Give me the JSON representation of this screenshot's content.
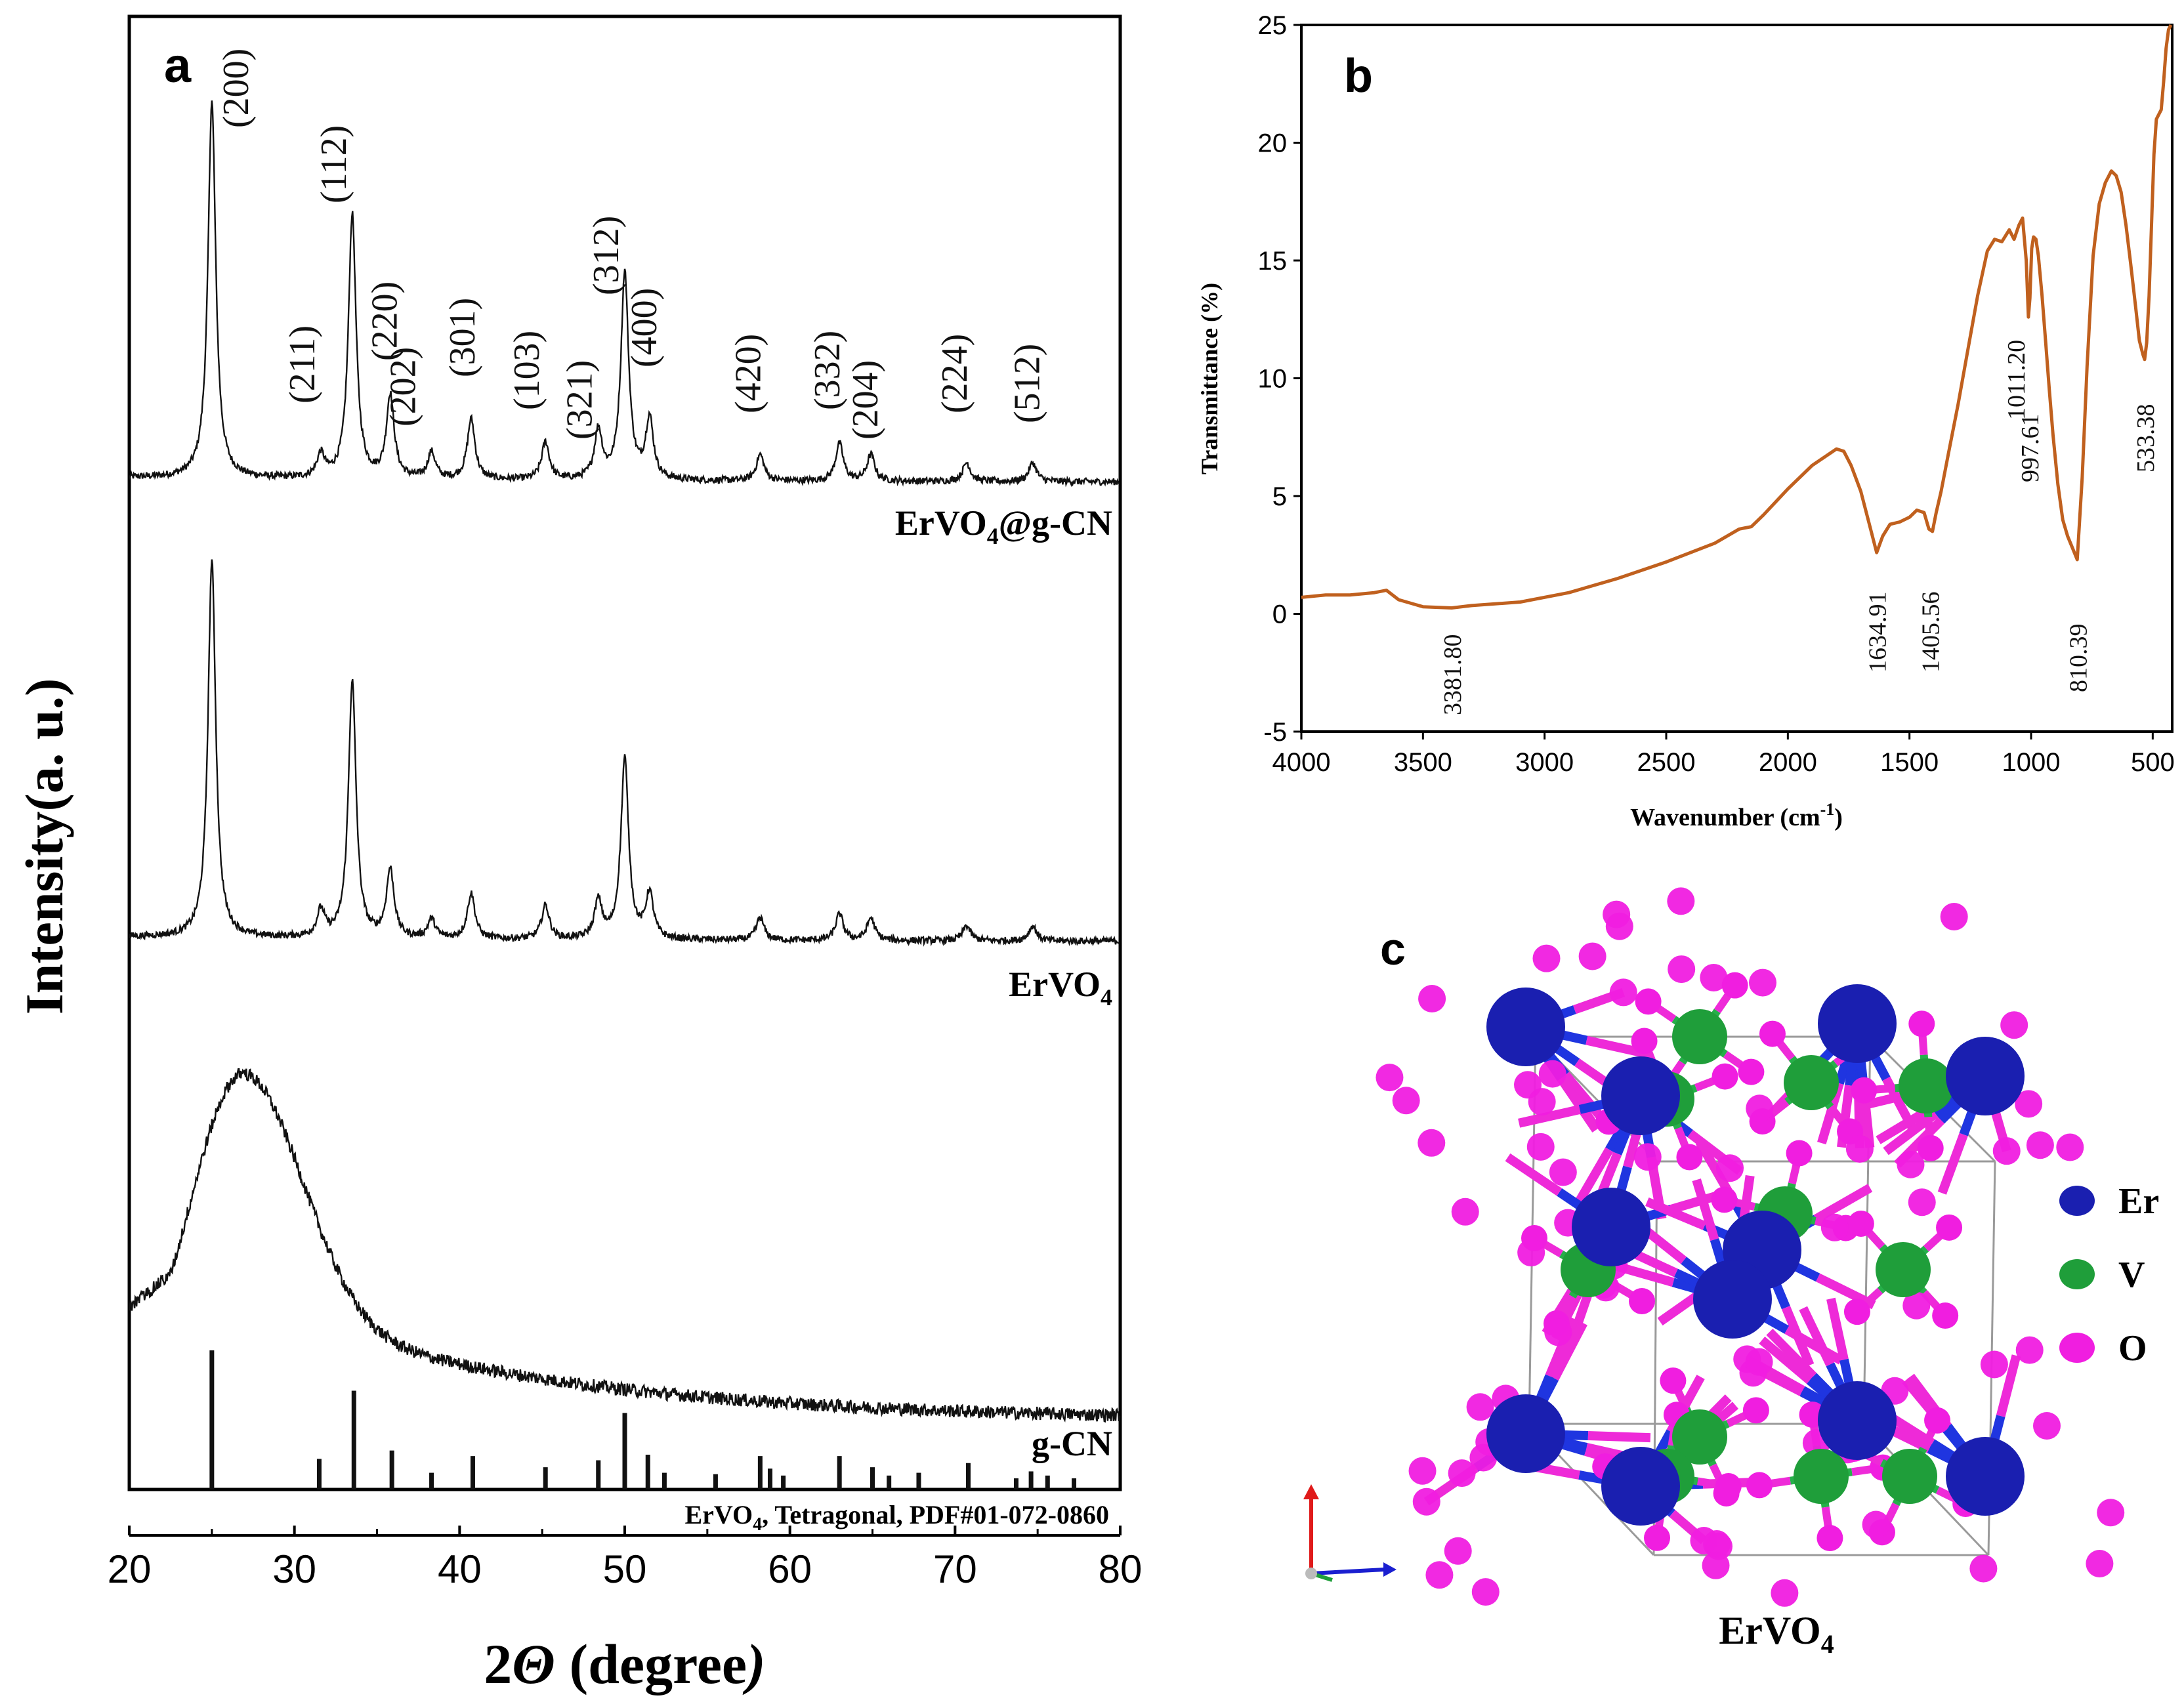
{
  "colors": {
    "ftir_line": "#c0601e",
    "er_atom": "#1a1fb0",
    "v_atom": "#1f9e3a",
    "o_atom": "#f01ee0",
    "er_bond": "#1f35e0",
    "o_bond": "#ee2ad8",
    "v_bond": "#26b04a"
  },
  "panels": {
    "a": {
      "label": "a"
    },
    "b": {
      "label": "b"
    },
    "c": {
      "label": "c",
      "caption_main": "ErVO",
      "caption_sub": "4",
      "legend": [
        {
          "label": "Er",
          "color": "#1a1fb0"
        },
        {
          "label": "V",
          "color": "#1f9e3a"
        },
        {
          "label": "O",
          "color": "#f01ee0"
        }
      ]
    }
  },
  "chart_data": [
    {
      "type": "line",
      "panel": "a",
      "title": "",
      "xlabel_main": "2",
      "xlabel_theta": "Θ",
      "xlabel_rest": " (degree",
      "xlabel_close": ")",
      "ylabel": "Intensity(a. u.)",
      "xlim": [
        20,
        80
      ],
      "xticks": [
        "20",
        "30",
        "40",
        "50",
        "60",
        "70",
        "80"
      ],
      "y_axis_scale": "arbitrary, stacked",
      "series": [
        {
          "name": "ErVO4@g-CN",
          "label_main": "ErVO",
          "label_sub": "4",
          "label_rest": "@g-CN",
          "peaks": [
            {
              "x": 25.0,
              "h": 1.0
            },
            {
              "x": 31.6,
              "h": 0.06
            },
            {
              "x": 33.5,
              "h": 0.7
            },
            {
              "x": 35.8,
              "h": 0.22
            },
            {
              "x": 38.3,
              "h": 0.07
            },
            {
              "x": 40.7,
              "h": 0.16
            },
            {
              "x": 45.2,
              "h": 0.1
            },
            {
              "x": 48.4,
              "h": 0.13
            },
            {
              "x": 50.0,
              "h": 0.55
            },
            {
              "x": 51.5,
              "h": 0.16
            },
            {
              "x": 58.2,
              "h": 0.07
            },
            {
              "x": 63.0,
              "h": 0.1
            },
            {
              "x": 64.9,
              "h": 0.07
            },
            {
              "x": 70.7,
              "h": 0.05
            },
            {
              "x": 74.7,
              "h": 0.05
            }
          ]
        },
        {
          "name": "ErVO4",
          "label_main": "ErVO",
          "label_sub": "4",
          "label_rest": "",
          "peaks": [
            {
              "x": 25.0,
              "h": 1.0
            },
            {
              "x": 31.6,
              "h": 0.07
            },
            {
              "x": 33.5,
              "h": 0.68
            },
            {
              "x": 35.8,
              "h": 0.18
            },
            {
              "x": 38.3,
              "h": 0.05
            },
            {
              "x": 40.7,
              "h": 0.12
            },
            {
              "x": 45.2,
              "h": 0.09
            },
            {
              "x": 48.4,
              "h": 0.1
            },
            {
              "x": 50.0,
              "h": 0.48
            },
            {
              "x": 51.5,
              "h": 0.12
            },
            {
              "x": 58.2,
              "h": 0.06
            },
            {
              "x": 63.0,
              "h": 0.07
            },
            {
              "x": 64.9,
              "h": 0.06
            },
            {
              "x": 70.7,
              "h": 0.04
            },
            {
              "x": 74.7,
              "h": 0.04
            }
          ]
        },
        {
          "name": "g-CN",
          "label_main": "g-CN",
          "label_sub": "",
          "label_rest": "",
          "broad_peak": {
            "center": 27.2,
            "height": 0.6
          }
        }
      ],
      "reference": {
        "label_main": "ErVO",
        "label_sub": "4",
        "label_rest": ", Tetragonal, PDF#01-072-0860",
        "lines": [
          {
            "x": 25.0,
            "h": 1.0
          },
          {
            "x": 31.5,
            "h": 0.22
          },
          {
            "x": 33.6,
            "h": 0.71
          },
          {
            "x": 35.9,
            "h": 0.28
          },
          {
            "x": 38.3,
            "h": 0.12
          },
          {
            "x": 40.8,
            "h": 0.24
          },
          {
            "x": 45.2,
            "h": 0.16
          },
          {
            "x": 48.4,
            "h": 0.21
          },
          {
            "x": 50.0,
            "h": 0.55
          },
          {
            "x": 51.4,
            "h": 0.25
          },
          {
            "x": 52.4,
            "h": 0.12
          },
          {
            "x": 55.5,
            "h": 0.11
          },
          {
            "x": 58.2,
            "h": 0.24
          },
          {
            "x": 58.8,
            "h": 0.15
          },
          {
            "x": 59.6,
            "h": 0.1
          },
          {
            "x": 63.0,
            "h": 0.24
          },
          {
            "x": 65.0,
            "h": 0.16
          },
          {
            "x": 66.0,
            "h": 0.1
          },
          {
            "x": 67.8,
            "h": 0.12
          },
          {
            "x": 70.8,
            "h": 0.19
          },
          {
            "x": 73.7,
            "h": 0.08
          },
          {
            "x": 74.6,
            "h": 0.13
          },
          {
            "x": 75.6,
            "h": 0.1
          },
          {
            "x": 77.2,
            "h": 0.08
          }
        ]
      },
      "annotations": [
        {
          "text": "(200)",
          "x": 25.0
        },
        {
          "text": "(211)",
          "x": 31.6
        },
        {
          "text": "(112)",
          "x": 33.5
        },
        {
          "text": "(220)",
          "x": 35.8
        },
        {
          "text": "(202)",
          "x": 38.3
        },
        {
          "text": "(301)",
          "x": 40.7
        },
        {
          "text": "(103)",
          "x": 45.2
        },
        {
          "text": "(321)",
          "x": 48.4
        },
        {
          "text": "(312)",
          "x": 50.0
        },
        {
          "text": "(400)",
          "x": 51.5
        },
        {
          "text": "(420)",
          "x": 58.2
        },
        {
          "text": "(332)",
          "x": 63.0
        },
        {
          "text": "(204)",
          "x": 64.9
        },
        {
          "text": "(224)",
          "x": 70.7
        },
        {
          "text": "(512)",
          "x": 74.7
        }
      ]
    },
    {
      "type": "line",
      "panel": "b",
      "title": "",
      "xlabel_main": "Wavenumber (cm",
      "xlabel_sup": "-1",
      "xlabel_close": ")",
      "ylabel": "Transmittance (%)",
      "xlim": [
        4000,
        420
      ],
      "ylim": [
        -5,
        25
      ],
      "xticks": [
        4000,
        3500,
        3000,
        2500,
        2000,
        1500,
        1000,
        500
      ],
      "yticks": [
        -5,
        0,
        5,
        10,
        15,
        20,
        25
      ],
      "series": [
        {
          "name": "ErVO4@g-CN FTIR",
          "x": [
            4000,
            3900,
            3800,
            3700,
            3650,
            3600,
            3500,
            3381.8,
            3300,
            3100,
            2900,
            2700,
            2500,
            2300,
            2200,
            2150,
            2100,
            2000,
            1900,
            1800,
            1770,
            1740,
            1700,
            1660,
            1634.91,
            1610,
            1580,
            1540,
            1500,
            1470,
            1440,
            1420,
            1405.56,
            1390,
            1370,
            1340,
            1300,
            1260,
            1220,
            1180,
            1150,
            1120,
            1090,
            1070,
            1050,
            1035,
            1020,
            1011.2,
            1005,
            997.61,
            990,
            980,
            970,
            955,
            940,
            925,
            910,
            890,
            870,
            850,
            830,
            810.39,
            790,
            770,
            745,
            720,
            695,
            670,
            650,
            630,
            610,
            590,
            570,
            555,
            540,
            533.38,
            525,
            515,
            505,
            495,
            485,
            475,
            465,
            455,
            445,
            435,
            425
          ],
          "y": [
            0.7,
            0.8,
            0.8,
            0.9,
            1.0,
            0.6,
            0.3,
            0.25,
            0.35,
            0.5,
            0.9,
            1.5,
            2.2,
            3.0,
            3.6,
            3.7,
            4.2,
            5.3,
            6.3,
            7.0,
            6.9,
            6.3,
            5.2,
            3.6,
            2.6,
            3.3,
            3.8,
            3.9,
            4.1,
            4.4,
            4.3,
            3.6,
            3.5,
            4.3,
            5.2,
            6.8,
            8.9,
            11.2,
            13.5,
            15.4,
            15.9,
            15.8,
            16.3,
            15.9,
            16.5,
            16.8,
            15.0,
            12.6,
            13.4,
            15.5,
            16.0,
            15.9,
            15.2,
            13.5,
            11.5,
            9.5,
            7.6,
            5.5,
            4.0,
            3.3,
            2.8,
            2.3,
            5.8,
            10.5,
            15.2,
            17.4,
            18.3,
            18.8,
            18.6,
            17.9,
            16.5,
            14.8,
            13.0,
            11.6,
            11.0,
            10.8,
            11.5,
            13.5,
            16.5,
            19.5,
            21.0,
            21.2,
            21.4,
            22.6,
            24.0,
            24.8,
            25.0
          ]
        }
      ],
      "annotations": [
        {
          "text": "3381.80",
          "x": 3381.8
        },
        {
          "text": "1634.91",
          "x": 1634.91
        },
        {
          "text": "1405.56",
          "x": 1405.56
        },
        {
          "text": "1011.20",
          "x": 1011.2
        },
        {
          "text": "997.61",
          "x": 997.61
        },
        {
          "text": "810.39",
          "x": 810.39
        },
        {
          "text": "533.38",
          "x": 533.38
        }
      ]
    }
  ]
}
